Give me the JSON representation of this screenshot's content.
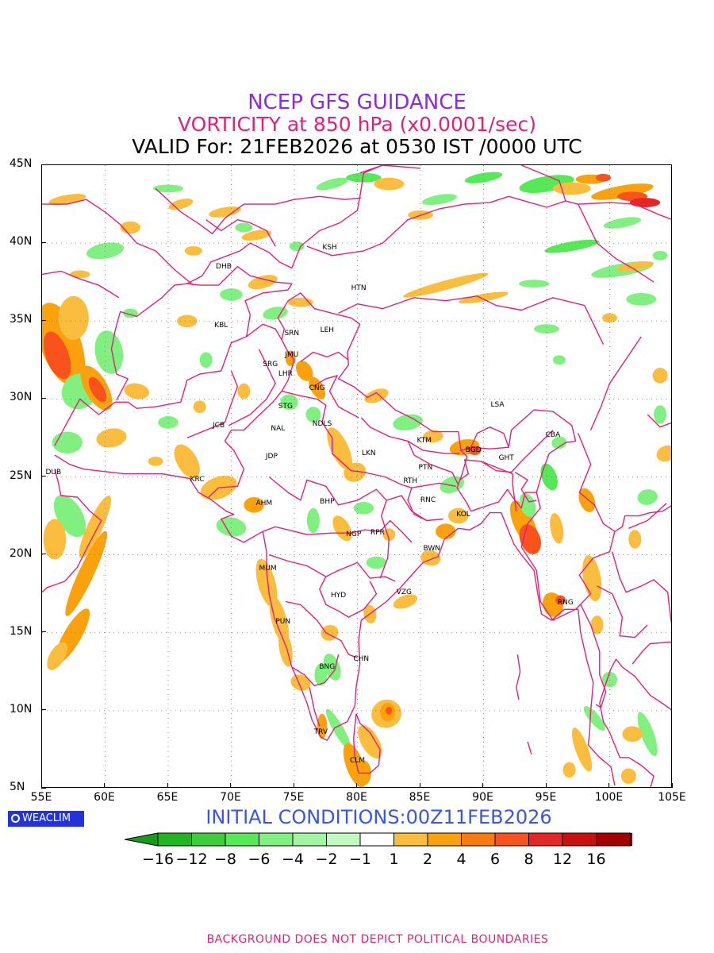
{
  "header": {
    "title": "NCEP GFS GUIDANCE",
    "subtitle": "VORTICITY at 850 hPa (x0.0001/sec)",
    "valid": "VALID For: 21FEB2026 at 0530 IST /0000 UTC"
  },
  "initial_conditions": "INITIAL CONDITIONS:00Z11FEB2026",
  "logo_text": "WEACLIM",
  "footer": "BACKGROUND DOES NOT DEPICT POLITICAL BOUNDARIES",
  "axes": {
    "lon_range": [
      55,
      105
    ],
    "lat_range": [
      5,
      45
    ],
    "lon_ticks": [
      "55E",
      "60E",
      "65E",
      "70E",
      "75E",
      "80E",
      "85E",
      "90E",
      "95E",
      "100E",
      "105E"
    ],
    "lat_ticks": [
      "45N",
      "40N",
      "35N",
      "30N",
      "25N",
      "20N",
      "15N",
      "10N",
      "5N"
    ]
  },
  "colorbar": {
    "labels": [
      "−16",
      "−12",
      "−8",
      "−6",
      "−4",
      "−2",
      "−1",
      "1",
      "2",
      "4",
      "6",
      "8",
      "12",
      "16"
    ],
    "colors": [
      "#1a9a1a",
      "#22b422",
      "#3ccc3c",
      "#55ea55",
      "#80f080",
      "#a2f4a2",
      "#c2f8c2",
      "#ffffff",
      "#fbbd3e",
      "#f9a20e",
      "#f97a10",
      "#f9521c",
      "#e42626",
      "#c81010",
      "#a40000",
      "#880000"
    ]
  },
  "boundary_color": "#e0207a",
  "cities": [
    {
      "code": "KSH",
      "lon": 77.8,
      "lat": 39.7
    },
    {
      "code": "DHB",
      "lon": 69.4,
      "lat": 38.5
    },
    {
      "code": "HTN",
      "lon": 80.1,
      "lat": 37.1
    },
    {
      "code": "KBL",
      "lon": 69.2,
      "lat": 34.7
    },
    {
      "code": "SRN",
      "lon": 74.8,
      "lat": 34.2
    },
    {
      "code": "LEH",
      "lon": 77.6,
      "lat": 34.4
    },
    {
      "code": "JMU",
      "lon": 74.8,
      "lat": 32.8
    },
    {
      "code": "SRG",
      "lon": 73.1,
      "lat": 32.2
    },
    {
      "code": "LHR",
      "lon": 74.3,
      "lat": 31.6
    },
    {
      "code": "CNG",
      "lon": 76.8,
      "lat": 30.7
    },
    {
      "code": "STG",
      "lon": 74.3,
      "lat": 29.5
    },
    {
      "code": "LSA",
      "lon": 91.1,
      "lat": 29.6
    },
    {
      "code": "JCB",
      "lon": 69.0,
      "lat": 28.3
    },
    {
      "code": "NAL",
      "lon": 73.7,
      "lat": 28.1
    },
    {
      "code": "NDLS",
      "lon": 77.2,
      "lat": 28.4
    },
    {
      "code": "CBA",
      "lon": 95.5,
      "lat": 27.7
    },
    {
      "code": "KTM",
      "lon": 85.3,
      "lat": 27.3
    },
    {
      "code": "BGD",
      "lon": 89.2,
      "lat": 26.7
    },
    {
      "code": "GHT",
      "lon": 91.8,
      "lat": 26.2
    },
    {
      "code": "JDP",
      "lon": 73.2,
      "lat": 26.3
    },
    {
      "code": "LKN",
      "lon": 80.9,
      "lat": 26.5
    },
    {
      "code": "PTN",
      "lon": 85.4,
      "lat": 25.6
    },
    {
      "code": "DUB",
      "lon": 55.9,
      "lat": 25.3
    },
    {
      "code": "RTH",
      "lon": 84.2,
      "lat": 24.7
    },
    {
      "code": "KRC",
      "lon": 67.3,
      "lat": 24.8
    },
    {
      "code": "BHP",
      "lon": 77.6,
      "lat": 23.4
    },
    {
      "code": "AHM",
      "lon": 72.6,
      "lat": 23.3
    },
    {
      "code": "RNC",
      "lon": 85.6,
      "lat": 23.5
    },
    {
      "code": "KOL",
      "lon": 88.4,
      "lat": 22.6
    },
    {
      "code": "NGP",
      "lon": 79.7,
      "lat": 21.3
    },
    {
      "code": "RPR",
      "lon": 81.6,
      "lat": 21.4
    },
    {
      "code": "BWN",
      "lon": 85.9,
      "lat": 20.4
    },
    {
      "code": "MUM",
      "lon": 72.9,
      "lat": 19.1
    },
    {
      "code": "HYD",
      "lon": 78.5,
      "lat": 17.4
    },
    {
      "code": "VZG",
      "lon": 83.7,
      "lat": 17.6
    },
    {
      "code": "RNG",
      "lon": 96.5,
      "lat": 16.9
    },
    {
      "code": "PUN",
      "lon": 74.1,
      "lat": 15.7
    },
    {
      "code": "CHN",
      "lon": 80.3,
      "lat": 13.3
    },
    {
      "code": "BNG",
      "lon": 77.6,
      "lat": 12.8
    },
    {
      "code": "TRV",
      "lon": 77.1,
      "lat": 8.6
    },
    {
      "code": "CLM",
      "lon": 80.0,
      "lat": 6.8
    }
  ]
}
